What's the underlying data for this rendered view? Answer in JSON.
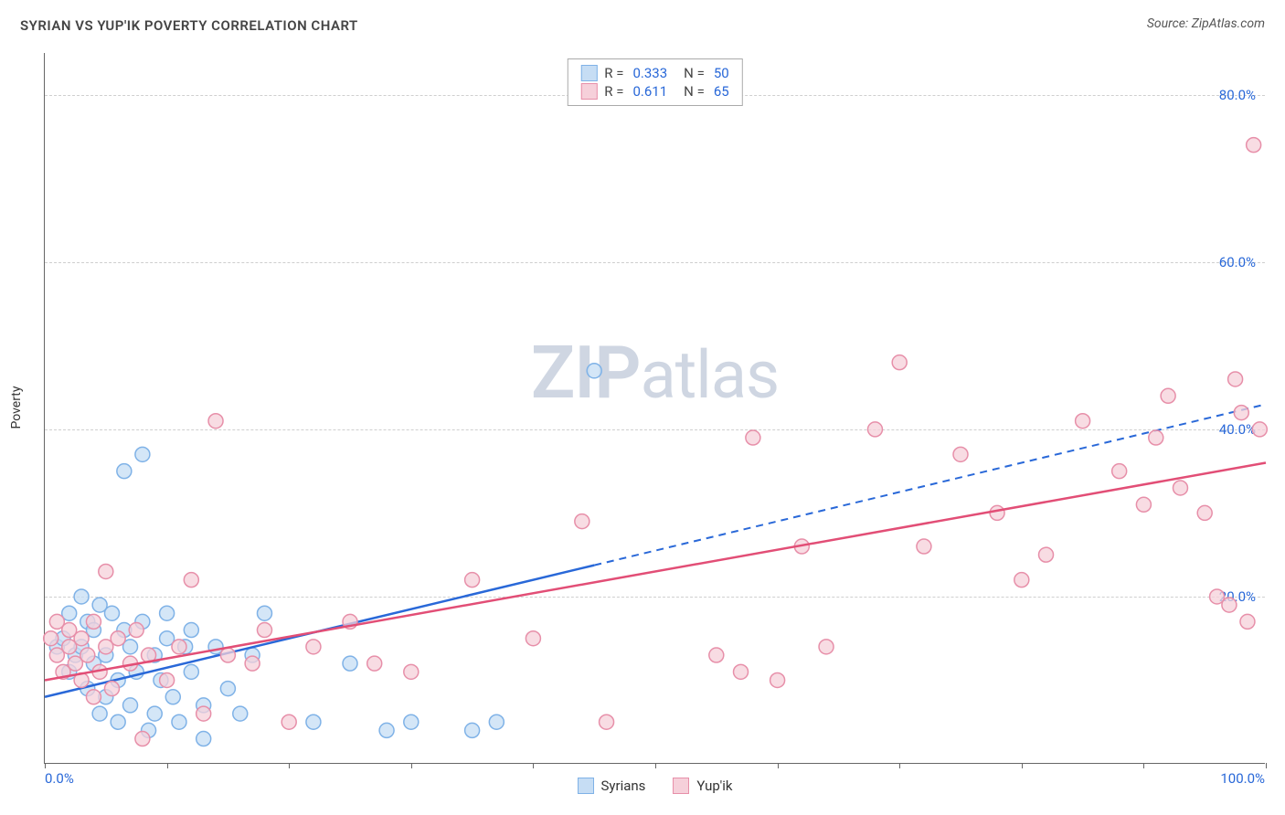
{
  "header": {
    "title": "SYRIAN VS YUP'IK POVERTY CORRELATION CHART",
    "source": "Source: ZipAtlas.com"
  },
  "chart": {
    "type": "scatter",
    "ylabel": "Poverty",
    "watermark": {
      "bold": "ZIP",
      "light": "atlas"
    },
    "xlim": [
      0,
      100
    ],
    "ylim": [
      0,
      85
    ],
    "yticks": [
      {
        "v": 20,
        "label": "20.0%"
      },
      {
        "v": 40,
        "label": "40.0%"
      },
      {
        "v": 60,
        "label": "60.0%"
      },
      {
        "v": 80,
        "label": "80.0%"
      }
    ],
    "xticks_at": [
      0,
      10,
      20,
      30,
      40,
      50,
      60,
      70,
      80,
      90,
      100
    ],
    "xtick_labels": [
      {
        "v": 0,
        "label": "0.0%",
        "anchor": "start"
      },
      {
        "v": 100,
        "label": "100.0%",
        "anchor": "end"
      }
    ],
    "grid_color": "#cfcfcf",
    "background_color": "#ffffff",
    "marker_radius": 8,
    "series": [
      {
        "key": "syrians",
        "label": "Syrians",
        "stroke": "#7fb2e7",
        "fill": "#c6ddf4",
        "line_color": "#2968d8",
        "line_dash_after_x": 45,
        "regression": {
          "x1": 0,
          "y1": 8,
          "x2": 100,
          "y2": 43
        },
        "R": "0.333",
        "N": "50",
        "points": [
          [
            1,
            14
          ],
          [
            1.5,
            15
          ],
          [
            2,
            11
          ],
          [
            2,
            18
          ],
          [
            2.5,
            13
          ],
          [
            3,
            14
          ],
          [
            3,
            20
          ],
          [
            3.5,
            9
          ],
          [
            3.5,
            17
          ],
          [
            4,
            12
          ],
          [
            4,
            16
          ],
          [
            4.5,
            6
          ],
          [
            4.5,
            19
          ],
          [
            5,
            13
          ],
          [
            5,
            8
          ],
          [
            5.5,
            18
          ],
          [
            6,
            10
          ],
          [
            6,
            5
          ],
          [
            6.5,
            16
          ],
          [
            6.5,
            35
          ],
          [
            7,
            14
          ],
          [
            7,
            7
          ],
          [
            7.5,
            11
          ],
          [
            8,
            17
          ],
          [
            8,
            37
          ],
          [
            8.5,
            4
          ],
          [
            9,
            13
          ],
          [
            9,
            6
          ],
          [
            9.5,
            10
          ],
          [
            10,
            18
          ],
          [
            10,
            15
          ],
          [
            10.5,
            8
          ],
          [
            11,
            5
          ],
          [
            11.5,
            14
          ],
          [
            12,
            11
          ],
          [
            12,
            16
          ],
          [
            13,
            7
          ],
          [
            13,
            3
          ],
          [
            14,
            14
          ],
          [
            15,
            9
          ],
          [
            16,
            6
          ],
          [
            17,
            13
          ],
          [
            18,
            18
          ],
          [
            22,
            5
          ],
          [
            25,
            12
          ],
          [
            28,
            4
          ],
          [
            30,
            5
          ],
          [
            35,
            4
          ],
          [
            37,
            5
          ],
          [
            45,
            47
          ]
        ]
      },
      {
        "key": "yupik",
        "label": "Yup'ik",
        "stroke": "#e78fa9",
        "fill": "#f6d0da",
        "line_color": "#e24e76",
        "line_dash_after_x": 100,
        "regression": {
          "x1": 0,
          "y1": 10,
          "x2": 100,
          "y2": 36
        },
        "R": "0.611",
        "N": "65",
        "points": [
          [
            0.5,
            15
          ],
          [
            1,
            17
          ],
          [
            1,
            13
          ],
          [
            1.5,
            11
          ],
          [
            2,
            14
          ],
          [
            2,
            16
          ],
          [
            2.5,
            12
          ],
          [
            3,
            10
          ],
          [
            3,
            15
          ],
          [
            3.5,
            13
          ],
          [
            4,
            17
          ],
          [
            4,
            8
          ],
          [
            4.5,
            11
          ],
          [
            5,
            14
          ],
          [
            5,
            23
          ],
          [
            5.5,
            9
          ],
          [
            6,
            15
          ],
          [
            7,
            12
          ],
          [
            7.5,
            16
          ],
          [
            8,
            3
          ],
          [
            8.5,
            13
          ],
          [
            10,
            10
          ],
          [
            11,
            14
          ],
          [
            12,
            22
          ],
          [
            13,
            6
          ],
          [
            14,
            41
          ],
          [
            15,
            13
          ],
          [
            17,
            12
          ],
          [
            18,
            16
          ],
          [
            20,
            5
          ],
          [
            22,
            14
          ],
          [
            25,
            17
          ],
          [
            27,
            12
          ],
          [
            30,
            11
          ],
          [
            35,
            22
          ],
          [
            40,
            15
          ],
          [
            44,
            29
          ],
          [
            46,
            5
          ],
          [
            55,
            13
          ],
          [
            57,
            11
          ],
          [
            58,
            39
          ],
          [
            60,
            10
          ],
          [
            62,
            26
          ],
          [
            64,
            14
          ],
          [
            68,
            40
          ],
          [
            70,
            48
          ],
          [
            72,
            26
          ],
          [
            75,
            37
          ],
          [
            78,
            30
          ],
          [
            80,
            22
          ],
          [
            82,
            25
          ],
          [
            85,
            41
          ],
          [
            88,
            35
          ],
          [
            90,
            31
          ],
          [
            91,
            39
          ],
          [
            92,
            44
          ],
          [
            93,
            33
          ],
          [
            95,
            30
          ],
          [
            96,
            20
          ],
          [
            97,
            19
          ],
          [
            97.5,
            46
          ],
          [
            98,
            42
          ],
          [
            98.5,
            17
          ],
          [
            99,
            74
          ],
          [
            99.5,
            40
          ]
        ]
      }
    ],
    "correlation_legend": {
      "rows": [
        {
          "swatch_series": "syrians",
          "r_label": "R =",
          "r_val": "0.333",
          "n_label": "N =",
          "n_val": "50"
        },
        {
          "swatch_series": "yupik",
          "r_label": "R =",
          "r_val": " 0.611",
          "n_label": "N =",
          "n_val": "65"
        }
      ]
    }
  }
}
